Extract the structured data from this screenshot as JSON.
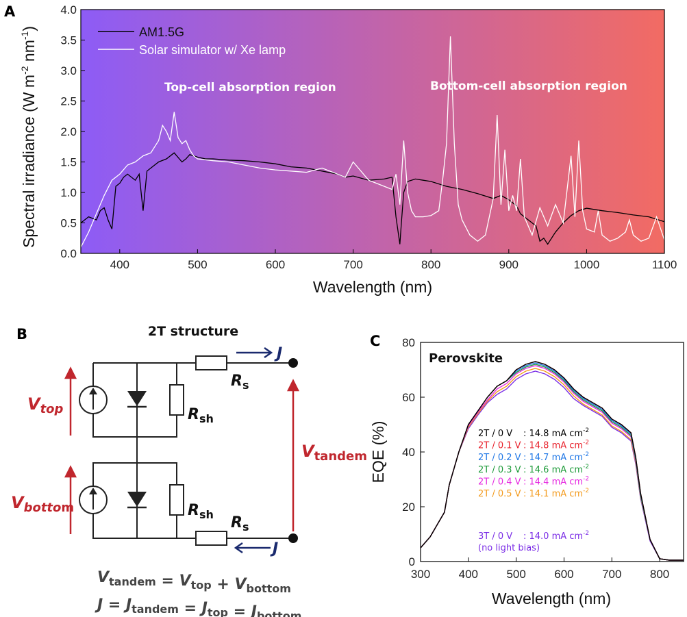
{
  "panel_labels": {
    "a": "A",
    "b": "B",
    "c": "C"
  },
  "chart_data": [
    {
      "type": "line",
      "panel": "A",
      "xlabel": "Wavelength (nm)",
      "ylabel": "Spectral irradiance (W m",
      "ylabel_sup1": "-2",
      "ylabel_mid": " nm",
      "ylabel_sup2": "-1",
      "ylabel_end": ")",
      "xlim": [
        350,
        1100
      ],
      "ylim": [
        0,
        4.0
      ],
      "x_ticks": [
        400,
        500,
        600,
        700,
        800,
        900,
        1000,
        1100
      ],
      "y_ticks": [
        "0.0",
        "0.5",
        "1.0",
        "1.5",
        "2.0",
        "2.5",
        "3.0",
        "3.5",
        "4.0"
      ],
      "background_gradient": [
        "#8d5cf6",
        "#f26b63"
      ],
      "annotations": [
        "Top-cell absorption region",
        "Bottom-cell absorption region"
      ],
      "legend": {
        "placement": "top-left",
        "entries": [
          "AM1.5G",
          "Solar simulator w/ Xe lamp"
        ]
      },
      "series": [
        {
          "name": "AM1.5G",
          "color": "#000000",
          "x": [
            350,
            360,
            370,
            375,
            380,
            385,
            390,
            395,
            400,
            405,
            410,
            420,
            425,
            430,
            435,
            440,
            450,
            460,
            470,
            480,
            485,
            490,
            500,
            510,
            520,
            540,
            560,
            580,
            600,
            620,
            640,
            660,
            680,
            690,
            700,
            720,
            740,
            750,
            755,
            760,
            762,
            765,
            770,
            780,
            790,
            800,
            820,
            840,
            860,
            880,
            890,
            900,
            910,
            915,
            920,
            930,
            935,
            940,
            945,
            950,
            960,
            970,
            980,
            990,
            1000,
            1020,
            1040,
            1060,
            1080,
            1100
          ],
          "y": [
            0.5,
            0.6,
            0.55,
            0.7,
            0.75,
            0.55,
            0.4,
            1.1,
            1.15,
            1.25,
            1.3,
            1.2,
            1.3,
            0.7,
            1.35,
            1.4,
            1.5,
            1.55,
            1.65,
            1.5,
            1.55,
            1.62,
            1.58,
            1.55,
            1.55,
            1.53,
            1.52,
            1.5,
            1.47,
            1.42,
            1.4,
            1.35,
            1.3,
            1.25,
            1.27,
            1.2,
            1.22,
            1.25,
            0.6,
            0.15,
            0.5,
            1.0,
            1.18,
            1.22,
            1.2,
            1.18,
            1.1,
            1.05,
            0.98,
            0.9,
            0.95,
            0.88,
            0.78,
            0.65,
            0.6,
            0.5,
            0.45,
            0.2,
            0.25,
            0.15,
            0.35,
            0.5,
            0.62,
            0.7,
            0.74,
            0.7,
            0.67,
            0.63,
            0.6,
            0.52
          ]
        },
        {
          "name": "Solar simulator w/ Xe lamp",
          "color": "#ffffff",
          "x": [
            350,
            360,
            370,
            380,
            390,
            400,
            410,
            420,
            430,
            440,
            450,
            455,
            460,
            465,
            470,
            475,
            480,
            485,
            490,
            495,
            500,
            520,
            540,
            560,
            580,
            600,
            620,
            640,
            660,
            680,
            690,
            700,
            720,
            740,
            750,
            755,
            760,
            765,
            770,
            775,
            780,
            790,
            800,
            810,
            815,
            820,
            825,
            830,
            835,
            840,
            850,
            860,
            870,
            880,
            885,
            890,
            895,
            900,
            905,
            910,
            915,
            920,
            930,
            940,
            950,
            960,
            970,
            980,
            985,
            990,
            995,
            1000,
            1010,
            1015,
            1020,
            1030,
            1040,
            1050,
            1055,
            1060,
            1070,
            1080,
            1090,
            1100
          ],
          "y": [
            0.1,
            0.35,
            0.65,
            0.95,
            1.2,
            1.3,
            1.45,
            1.5,
            1.6,
            1.65,
            1.85,
            2.1,
            2.0,
            1.85,
            2.32,
            1.9,
            1.8,
            1.85,
            1.7,
            1.6,
            1.55,
            1.52,
            1.5,
            1.45,
            1.4,
            1.37,
            1.35,
            1.33,
            1.4,
            1.3,
            1.25,
            1.5,
            1.2,
            1.1,
            1.05,
            1.3,
            0.8,
            1.85,
            1.0,
            0.7,
            0.6,
            0.6,
            0.62,
            0.7,
            1.2,
            1.8,
            3.56,
            1.8,
            0.8,
            0.55,
            0.3,
            0.2,
            0.3,
            0.9,
            2.27,
            0.8,
            1.7,
            0.7,
            0.95,
            0.7,
            1.55,
            0.6,
            0.3,
            0.75,
            0.45,
            0.8,
            0.5,
            1.6,
            0.6,
            1.85,
            0.7,
            0.4,
            0.35,
            0.7,
            0.3,
            0.2,
            0.25,
            0.35,
            0.55,
            0.3,
            0.2,
            0.25,
            0.6,
            0.22
          ]
        }
      ]
    },
    {
      "type": "line",
      "panel": "C",
      "title": "Perovskite",
      "xlabel": "Wavelength (nm)",
      "ylabel": "EQE (%)",
      "xlim": [
        300,
        850
      ],
      "ylim": [
        0,
        80
      ],
      "x_ticks": [
        300,
        400,
        500,
        600,
        700,
        800
      ],
      "y_ticks": [
        0,
        20,
        40,
        60,
        80
      ],
      "x": [
        300,
        320,
        340,
        350,
        360,
        380,
        400,
        420,
        440,
        460,
        480,
        500,
        520,
        540,
        560,
        580,
        600,
        620,
        640,
        660,
        680,
        700,
        720,
        740,
        750,
        760,
        780,
        800,
        820,
        850
      ],
      "legend": [
        {
          "label": "2T / 0 V",
          "value": ": 14.8 mA cm",
          "sup": "-2",
          "color": "#000000"
        },
        {
          "label": "2T / 0.1 V",
          "value": ": 14.8 mA cm",
          "sup": "-2",
          "color": "#e8212b"
        },
        {
          "label": "2T / 0.2 V",
          "value": ": 14.7 mA cm",
          "sup": "-2",
          "color": "#1f77e6"
        },
        {
          "label": "2T / 0.3 V",
          "value": ": 14.6 mA cm",
          "sup": "-2",
          "color": "#1e9b3a"
        },
        {
          "label": "2T / 0.4 V",
          "value": ": 14.4 mA cm",
          "sup": "-2",
          "color": "#e629e0"
        },
        {
          "label": "2T / 0.5 V",
          "value": ": 14.1 mA cm",
          "sup": "-2",
          "color": "#f39a1c"
        },
        {
          "label": "3T / 0 V",
          "value": ": 14.0 mA cm",
          "sup": "-2",
          "color": "#7b2ee6",
          "note": "(no light bias)"
        }
      ],
      "series": [
        {
          "name": "2T / 0 V",
          "color": "#000000",
          "values": [
            5,
            9,
            15,
            18,
            28,
            40,
            50,
            55,
            60,
            64,
            66,
            70,
            72,
            73,
            72,
            70,
            67,
            63,
            60,
            58,
            56,
            52,
            50,
            47,
            38,
            25,
            8,
            1,
            0.5,
            0.5
          ]
        },
        {
          "name": "2T / 0.1 V",
          "color": "#e8212b",
          "values": [
            5,
            9,
            15,
            18,
            28,
            40,
            50,
            55,
            60,
            64,
            66,
            70,
            72,
            73,
            72,
            70,
            67,
            63,
            60,
            58,
            56,
            52,
            50,
            47,
            38,
            25,
            8,
            1,
            0.5,
            0.5
          ]
        },
        {
          "name": "2T / 0.2 V",
          "color": "#1f77e6",
          "values": [
            5,
            9,
            15,
            18,
            28,
            40,
            50,
            55,
            60,
            64,
            66,
            69.5,
            71.5,
            72.5,
            71.5,
            69.5,
            66.5,
            62.5,
            59.5,
            57.5,
            55.5,
            51.5,
            49.5,
            46.5,
            37.5,
            24.5,
            8,
            1,
            0.5,
            0.5
          ]
        },
        {
          "name": "2T / 0.3 V",
          "color": "#1e9b3a",
          "values": [
            5,
            9,
            15,
            18,
            28,
            40,
            50,
            55,
            60,
            64,
            66,
            69,
            71,
            72,
            71,
            69,
            66,
            62,
            59,
            57,
            55,
            51,
            49,
            46,
            37,
            24,
            8,
            1,
            0.5,
            0.5
          ]
        },
        {
          "name": "2T / 0.4 V",
          "color": "#e629e0",
          "values": [
            5,
            9,
            15,
            18,
            28,
            40,
            49.5,
            54.5,
            59,
            63,
            65,
            68.5,
            70.5,
            71.5,
            70.5,
            68.5,
            65.5,
            61.5,
            58.5,
            56.5,
            54.5,
            50.5,
            48.5,
            45.5,
            36.5,
            24,
            8,
            1,
            0.5,
            0.5
          ]
        },
        {
          "name": "2T / 0.5 V",
          "color": "#f39a1c",
          "values": [
            5,
            9,
            15,
            18,
            28,
            40,
            49,
            54,
            58.5,
            62,
            64,
            67.5,
            69.5,
            70.5,
            69.5,
            67.5,
            64.5,
            60.5,
            57.5,
            55.5,
            53.5,
            49.5,
            47.5,
            44.5,
            36,
            23.5,
            8,
            1,
            0.5,
            0.5
          ]
        },
        {
          "name": "3T / 0 V",
          "color": "#7b2ee6",
          "values": [
            5,
            9,
            15,
            18,
            28,
            40,
            48.5,
            53.5,
            58,
            61,
            63,
            66.5,
            68.5,
            69.5,
            68.5,
            66.5,
            63.5,
            59.5,
            57,
            55,
            53,
            49,
            47,
            44,
            35.5,
            23,
            7.5,
            1,
            0.5,
            0.5
          ]
        }
      ]
    }
  ],
  "circuit": {
    "title": "2T structure",
    "v_top": "V",
    "v_top_sub": "top",
    "v_bottom": "V",
    "v_bottom_sub": "botto",
    "v_bottom_tail": "m",
    "v_tandem": "V",
    "v_tandem_sub": "tandem",
    "r_s": "R",
    "r_s_sub": "s",
    "r_sh": "R",
    "r_sh_sub": "sh",
    "current": "J",
    "eq1": [
      {
        "t": "V",
        "sub": "tandem"
      },
      {
        "t": " = "
      },
      {
        "t": "V",
        "sub": "top"
      },
      {
        "t": " + "
      },
      {
        "t": "V",
        "sub": "bottom"
      }
    ],
    "eq2": [
      {
        "t": "J",
        "sub": ""
      },
      {
        "t": " = "
      },
      {
        "t": "J",
        "sub": "tandem"
      },
      {
        "t": " = "
      },
      {
        "t": "J",
        "sub": "top"
      },
      {
        "t": " = "
      },
      {
        "t": "J",
        "sub": "bottom"
      }
    ]
  }
}
